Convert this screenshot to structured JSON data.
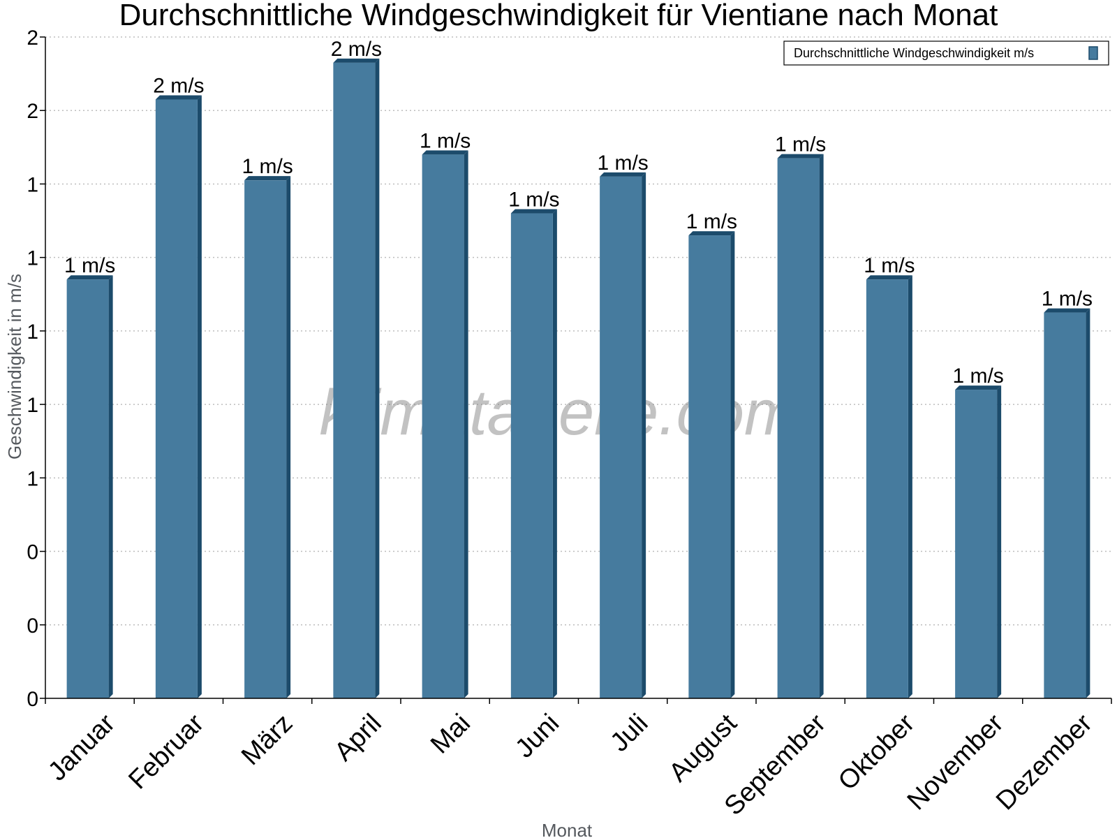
{
  "chart_data": {
    "type": "bar",
    "title": "Durchschnittliche Windgeschwindigkeit für Vientiane nach Monat",
    "xlabel": "Monat",
    "ylabel": "Geschwindigkeit in m/s",
    "categories": [
      "Januar",
      "Februar",
      "März",
      "April",
      "Mai",
      "Juni",
      "Juli",
      "August",
      "September",
      "Oktober",
      "November",
      "Dezember"
    ],
    "series": [
      {
        "name": "Durchschnittliche Windgeschwindigkeit m/s",
        "values": [
          1.14,
          1.63,
          1.41,
          1.73,
          1.48,
          1.32,
          1.42,
          1.26,
          1.47,
          1.14,
          0.84,
          1.05
        ],
        "data_labels": [
          "1 m/s",
          "2 m/s",
          "1 m/s",
          "2 m/s",
          "1 m/s",
          "1 m/s",
          "1 m/s",
          "1 m/s",
          "1 m/s",
          "1 m/s",
          "1 m/s",
          "1 m/s"
        ]
      }
    ],
    "ylim": [
      0,
      1.8
    ],
    "yticks": [
      0,
      0.2,
      0.4,
      0.6,
      0.8,
      1.0,
      1.2,
      1.4,
      1.6,
      1.8
    ],
    "ytick_labels": [
      "0",
      "0",
      "0",
      "1",
      "1",
      "1",
      "1",
      "1",
      "2",
      "2"
    ],
    "grid": true,
    "legend_position": "top-right",
    "watermark": "klimatabelle.com",
    "colors": {
      "bar": "#467b9e",
      "bar_side": "#1c4b6b",
      "grid": "#bdbdbd"
    }
  }
}
